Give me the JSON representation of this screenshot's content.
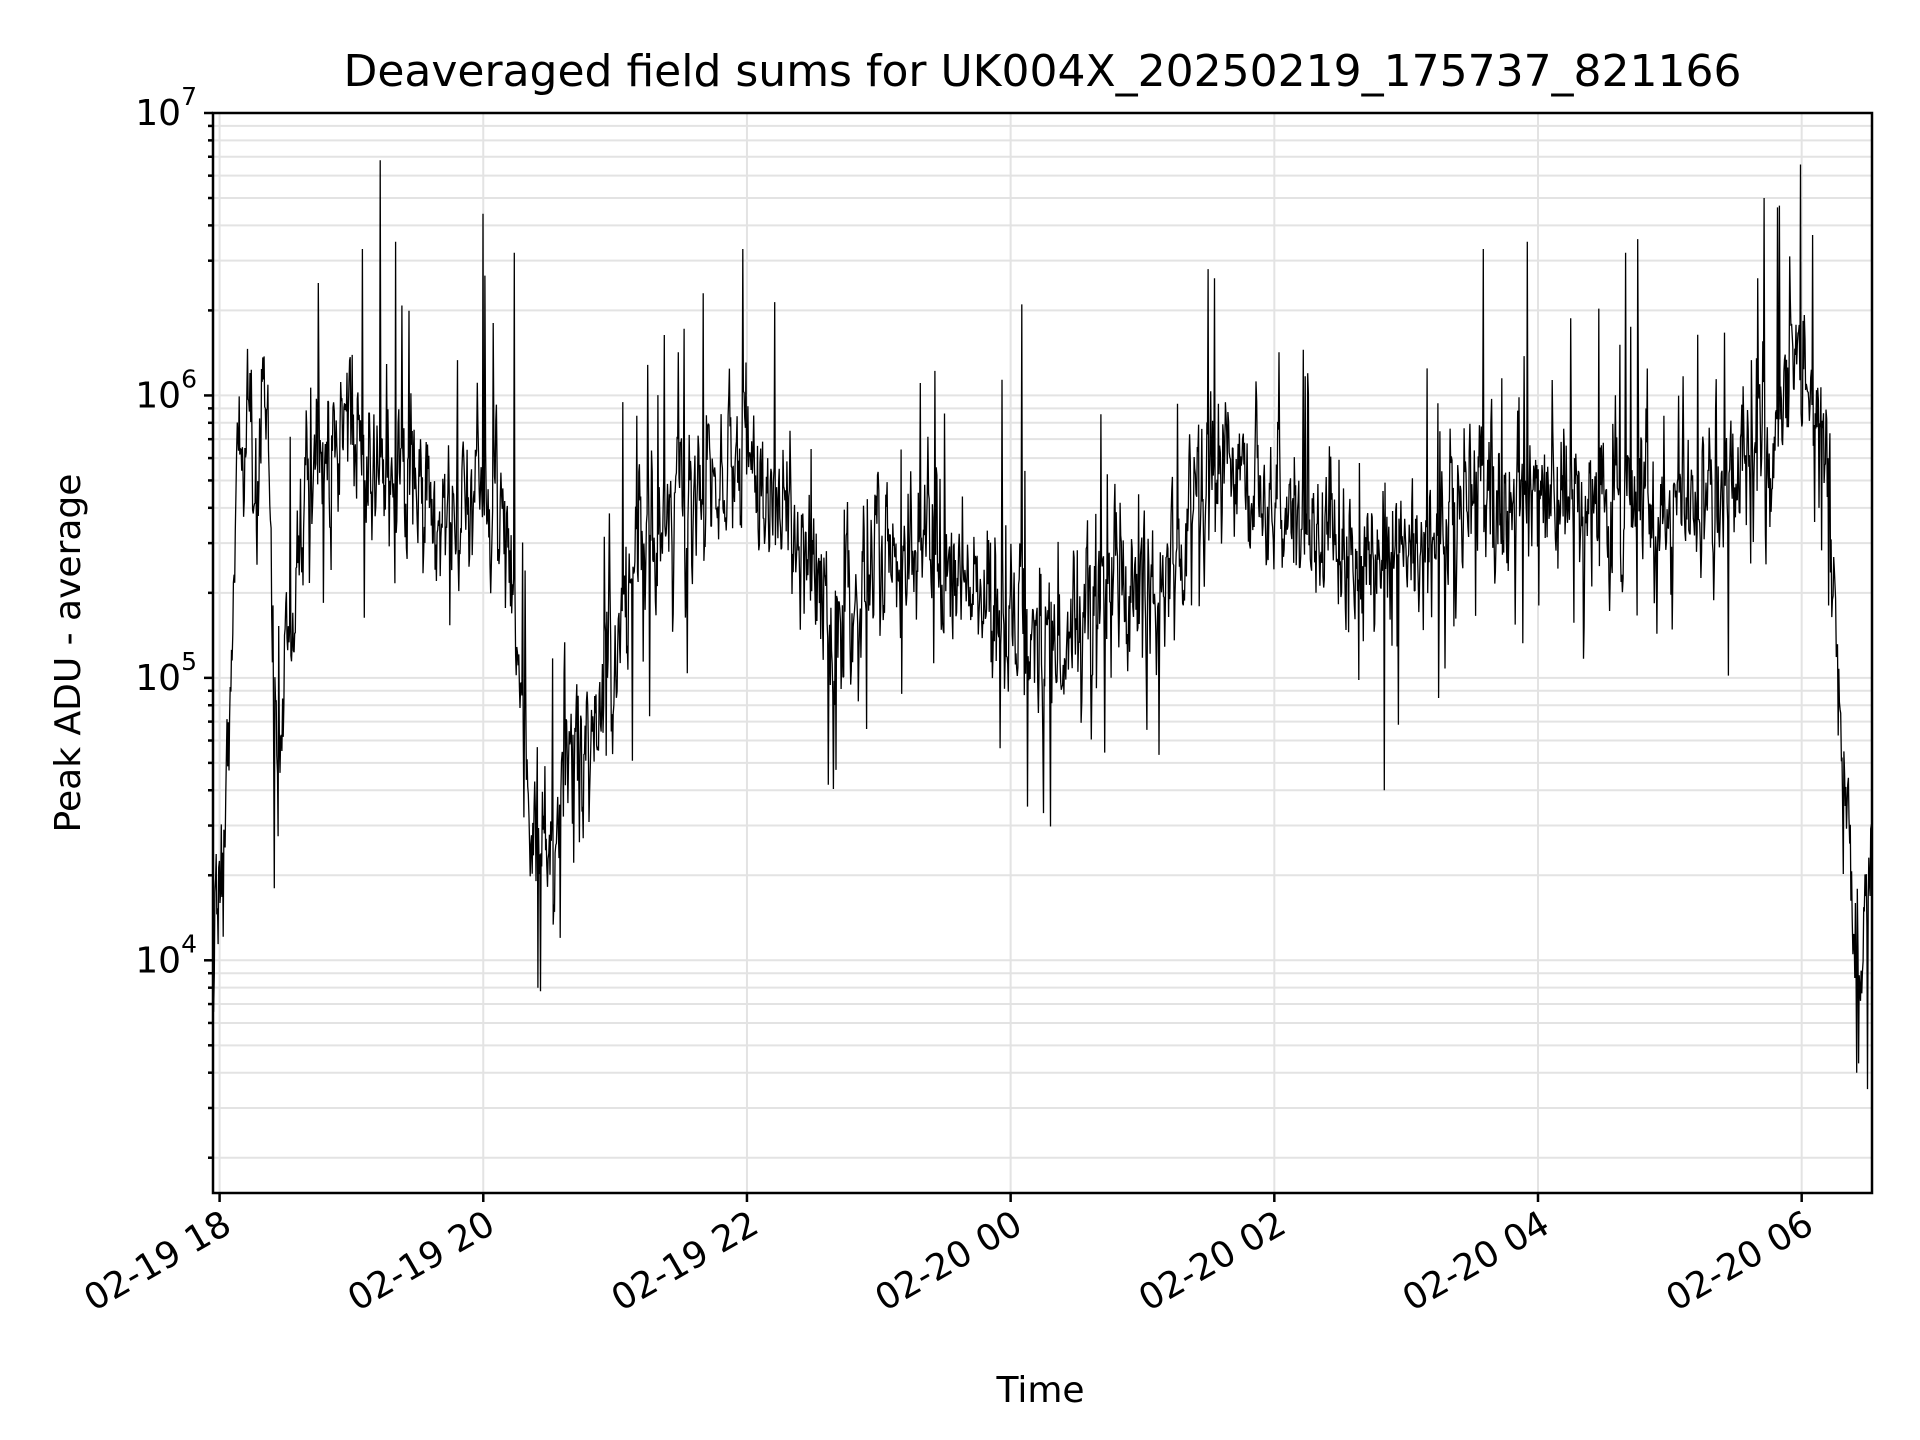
{
  "chart_data": {
    "type": "line",
    "title": "Deaveraged field sums for UK004X_20250219_175737_821166",
    "xlabel": "Time",
    "ylabel": "Peak ADU - average",
    "yscale": "log",
    "ylim": [
      1500,
      10000000
    ],
    "xlim": [
      "2025-02-19 17:57",
      "2025-02-20 06:32"
    ],
    "grid": "on",
    "x_ticks": [
      {
        "value": "2025-02-19 18:00",
        "label": "02-19 18"
      },
      {
        "value": "2025-02-19 20:00",
        "label": "02-19 20"
      },
      {
        "value": "2025-02-19 22:00",
        "label": "02-19 22"
      },
      {
        "value": "2025-02-20 00:00",
        "label": "02-20 00"
      },
      {
        "value": "2025-02-20 02:00",
        "label": "02-20 02"
      },
      {
        "value": "2025-02-20 04:00",
        "label": "02-20 04"
      },
      {
        "value": "2025-02-20 06:00",
        "label": "02-20 06"
      }
    ],
    "y_ticks": [
      {
        "value": 10000,
        "base": "10",
        "exp": "4"
      },
      {
        "value": 100000,
        "base": "10",
        "exp": "5"
      },
      {
        "value": 1000000,
        "base": "10",
        "exp": "6"
      },
      {
        "value": 10000000,
        "base": "10",
        "exp": "7"
      }
    ],
    "series": [
      {
        "color": "#000000",
        "x": [
          "2025-02-19 17:57",
          "2025-02-19 18:00",
          "2025-02-19 18:02",
          "2025-02-19 18:04",
          "2025-02-19 18:06",
          "2025-02-19 18:08",
          "2025-02-19 18:10",
          "2025-02-19 18:13",
          "2025-02-19 18:17",
          "2025-02-19 18:20",
          "2025-02-19 18:23",
          "2025-02-19 18:26",
          "2025-02-19 18:30",
          "2025-02-19 18:35",
          "2025-02-19 18:40",
          "2025-02-19 18:50",
          "2025-02-19 19:00",
          "2025-02-19 19:10",
          "2025-02-19 19:20",
          "2025-02-19 19:30",
          "2025-02-19 19:40",
          "2025-02-19 19:50",
          "2025-02-19 20:00",
          "2025-02-19 20:10",
          "2025-02-19 20:15",
          "2025-02-19 20:20",
          "2025-02-19 20:25",
          "2025-02-19 20:30",
          "2025-02-19 20:40",
          "2025-02-19 20:50",
          "2025-02-19 21:00",
          "2025-02-19 21:10",
          "2025-02-19 21:20",
          "2025-02-19 21:30",
          "2025-02-19 21:45",
          "2025-02-19 22:00",
          "2025-02-19 22:15",
          "2025-02-19 22:30",
          "2025-02-19 22:45",
          "2025-02-19 23:00",
          "2025-02-19 23:15",
          "2025-02-19 23:30",
          "2025-02-19 23:45",
          "2025-02-20 00:00",
          "2025-02-20 00:15",
          "2025-02-20 00:30",
          "2025-02-20 00:45",
          "2025-02-20 01:00",
          "2025-02-20 01:15",
          "2025-02-20 01:30",
          "2025-02-20 01:45",
          "2025-02-20 02:00",
          "2025-02-20 02:15",
          "2025-02-20 02:30",
          "2025-02-20 02:45",
          "2025-02-20 03:00",
          "2025-02-20 03:15",
          "2025-02-20 03:30",
          "2025-02-20 03:45",
          "2025-02-20 04:00",
          "2025-02-20 04:15",
          "2025-02-20 04:30",
          "2025-02-20 04:45",
          "2025-02-20 05:00",
          "2025-02-20 05:15",
          "2025-02-20 05:30",
          "2025-02-20 05:45",
          "2025-02-20 06:00",
          "2025-02-20 06:05",
          "2025-02-20 06:10",
          "2025-02-20 06:13",
          "2025-02-20 06:17",
          "2025-02-20 06:20",
          "2025-02-20 06:23",
          "2025-02-20 06:26",
          "2025-02-20 06:29",
          "2025-02-20 06:32"
        ],
        "y": [
          12000,
          20000,
          22000,
          40000,
          150000,
          400000,
          600000,
          800000,
          500000,
          1200000,
          300000,
          40000,
          120000,
          200000,
          400000,
          700000,
          800000,
          600000,
          500000,
          500000,
          400000,
          450000,
          500000,
          400000,
          150000,
          40000,
          25000,
          20000,
          50000,
          60000,
          150000,
          300000,
          300000,
          400000,
          500000,
          600000,
          400000,
          200000,
          150000,
          300000,
          300000,
          250000,
          200000,
          150000,
          130000,
          150000,
          200000,
          200000,
          250000,
          500000,
          600000,
          400000,
          350000,
          300000,
          250000,
          300000,
          350000,
          400000,
          400000,
          500000,
          450000,
          400000,
          450000,
          400000,
          450000,
          500000,
          700000,
          1200000,
          1000000,
          800000,
          400000,
          100000,
          40000,
          15000,
          10000,
          12000,
          20000
        ],
        "spikes_up": [
          {
            "x": "2025-02-19 18:45",
            "y": 2500000
          },
          {
            "x": "2025-02-19 19:05",
            "y": 3300000
          },
          {
            "x": "2025-02-19 19:13",
            "y": 6800000
          },
          {
            "x": "2025-02-19 19:20",
            "y": 3500000
          },
          {
            "x": "2025-02-19 20:00",
            "y": 4400000
          },
          {
            "x": "2025-02-19 20:14",
            "y": 3200000
          },
          {
            "x": "2025-02-19 21:40",
            "y": 2300000
          },
          {
            "x": "2025-02-19 21:58",
            "y": 3300000
          },
          {
            "x": "2025-02-20 00:05",
            "y": 2100000
          },
          {
            "x": "2025-02-20 01:30",
            "y": 2800000
          },
          {
            "x": "2025-02-20 03:35",
            "y": 3300000
          },
          {
            "x": "2025-02-20 03:55",
            "y": 3500000
          },
          {
            "x": "2025-02-20 04:40",
            "y": 3200000
          },
          {
            "x": "2025-02-20 05:43",
            "y": 5000000
          },
          {
            "x": "2025-02-20 05:50",
            "y": 4700000
          },
          {
            "x": "2025-02-20 06:05",
            "y": 3700000
          }
        ],
        "spikes_down": [
          {
            "x": "2025-02-19 18:25",
            "y": 18000
          },
          {
            "x": "2025-02-19 20:25",
            "y": 8000
          },
          {
            "x": "2025-02-19 20:35",
            "y": 12000
          },
          {
            "x": "2025-02-20 02:50",
            "y": 40000
          },
          {
            "x": "2025-02-20 06:25",
            "y": 4000
          },
          {
            "x": "2025-02-20 06:30",
            "y": 3500
          }
        ]
      }
    ]
  }
}
